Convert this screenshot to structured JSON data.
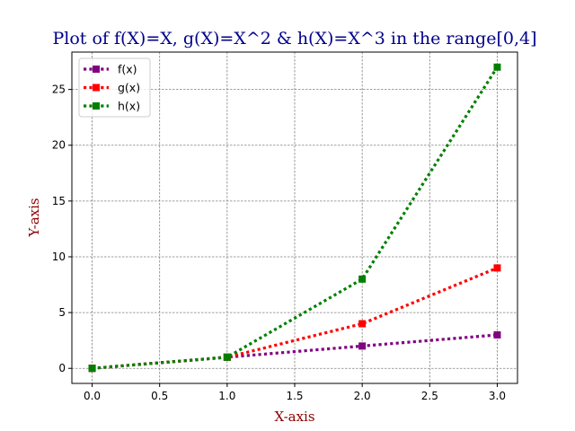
{
  "chart_data": {
    "type": "line",
    "title": "Plot of f(X)=X, g(X)=X^2 & h(X)=X^3 in the range[0,4]",
    "xlabel": "X-axis",
    "ylabel": "Y-axis",
    "x": [
      0,
      1,
      2,
      3
    ],
    "xlim": [
      -0.15,
      3.15
    ],
    "ylim": [
      -1.35,
      28.35
    ],
    "xticks": [
      0.0,
      0.5,
      1.0,
      1.5,
      2.0,
      2.5,
      3.0
    ],
    "xtick_labels": [
      "0.0",
      "0.5",
      "1.0",
      "1.5",
      "2.0",
      "2.5",
      "3.0"
    ],
    "yticks": [
      0,
      5,
      10,
      15,
      20,
      25
    ],
    "ytick_labels": [
      "0",
      "5",
      "10",
      "15",
      "20",
      "25"
    ],
    "grid": true,
    "legend_position": "top-left",
    "series": [
      {
        "name": "f(x)",
        "color": "#800080",
        "marker": "square",
        "linestyle": "dotted",
        "values": [
          0,
          1,
          2,
          3
        ]
      },
      {
        "name": "g(x)",
        "color": "#ff0000",
        "marker": "square",
        "linestyle": "dotted",
        "values": [
          0,
          1,
          4,
          9
        ]
      },
      {
        "name": "h(x)",
        "color": "#008000",
        "marker": "square",
        "linestyle": "dotted",
        "values": [
          0,
          1,
          8,
          27
        ]
      }
    ]
  }
}
